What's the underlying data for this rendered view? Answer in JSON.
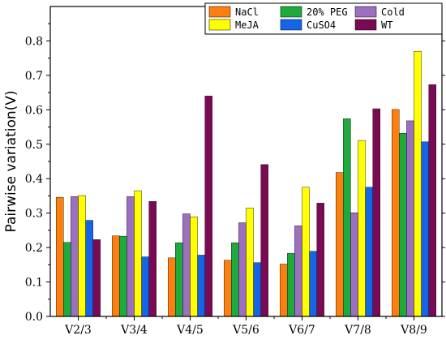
{
  "chart_data": {
    "type": "bar",
    "title": "",
    "xlabel": "",
    "ylabel": "Pairwise variation(V)",
    "ylim": [
      0,
      0.9
    ],
    "yticks": [
      "0.0",
      "0.1",
      "0.2",
      "0.3",
      "0.4",
      "0.5",
      "0.6",
      "0.7",
      "0.8"
    ],
    "categories": [
      "V2/3",
      "V3/4",
      "V4/5",
      "V5/6",
      "V6/7",
      "V7/8",
      "V8/9"
    ],
    "series": [
      {
        "name": "NaCl",
        "color": "#FF7F0E",
        "values": [
          0.346,
          0.234,
          0.17,
          0.163,
          0.152,
          0.418,
          0.601
        ]
      },
      {
        "name": "20% PEG",
        "color": "#1FAA3C",
        "values": [
          0.215,
          0.233,
          0.214,
          0.214,
          0.183,
          0.574,
          0.532
        ]
      },
      {
        "name": "Cold",
        "color": "#9C6FC0",
        "values": [
          0.348,
          0.348,
          0.298,
          0.272,
          0.263,
          0.301,
          0.568
        ]
      },
      {
        "name": "MeJA",
        "color": "#FFFF00",
        "values": [
          0.351,
          0.365,
          0.289,
          0.315,
          0.375,
          0.511,
          0.77
        ]
      },
      {
        "name": "CuSO4",
        "color": "#1565E8",
        "values": [
          0.279,
          0.173,
          0.178,
          0.156,
          0.189,
          0.375,
          0.507
        ]
      },
      {
        "name": "WT",
        "color": "#7B0A54",
        "values": [
          0.223,
          0.334,
          0.64,
          0.441,
          0.329,
          0.603,
          0.673
        ]
      }
    ],
    "legend_position": "top-right",
    "grid": false
  }
}
